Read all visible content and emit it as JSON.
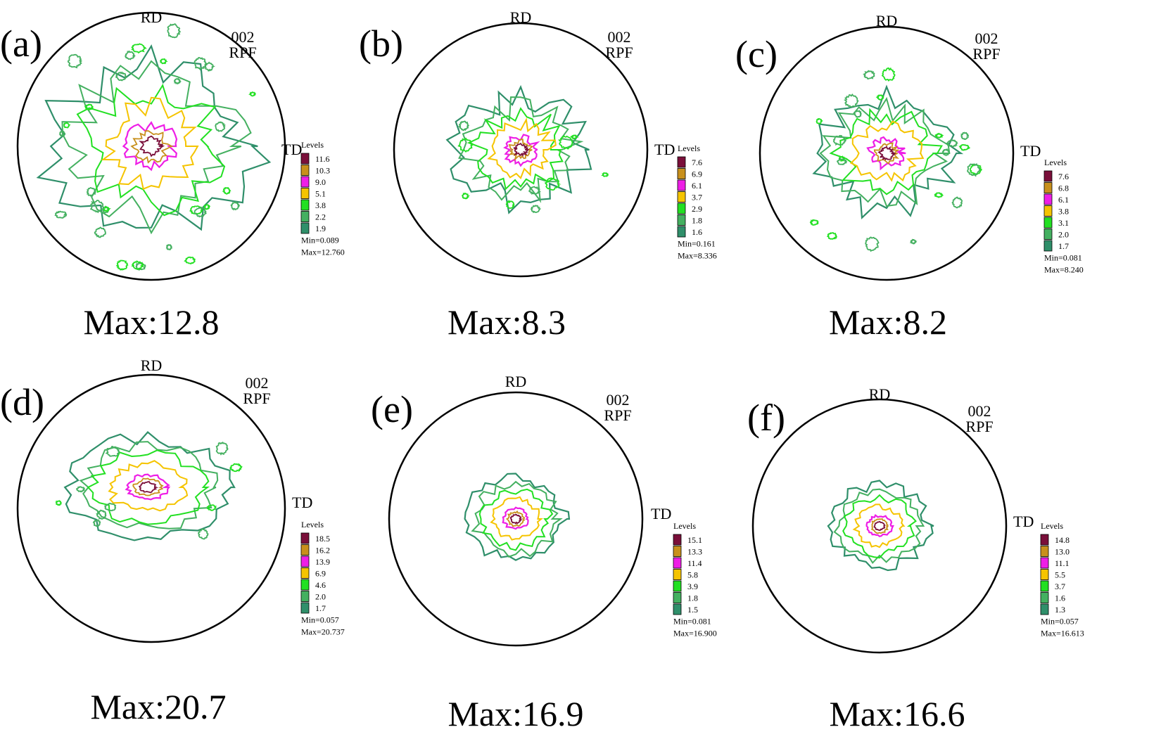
{
  "figure": {
    "type": "pole-figure-grid",
    "colors": {
      "background": "#ffffff",
      "outline": "#000000"
    }
  },
  "chart_data": [
    {
      "type": "pole_figure",
      "panel": "(a)",
      "rd_label": "RD",
      "td_label": "TD",
      "plane": "002",
      "figure_type": "RPF",
      "levels_title": "Levels",
      "levels": [
        "11.6",
        "10.3",
        "9.0",
        "5.1",
        "3.8",
        "2.2",
        "1.9"
      ],
      "level_colors": [
        "#7a0f3a",
        "#c8901c",
        "#ee1ee6",
        "#f5c400",
        "#22e022",
        "#44b060",
        "#2f8f6a"
      ],
      "min_text": "Min=0.089",
      "max_text": "Max=12.760",
      "max_caption": "Max:12.8",
      "spread": "wide"
    },
    {
      "type": "pole_figure",
      "panel": "(b)",
      "rd_label": "RD",
      "td_label": "TD",
      "plane": "002",
      "figure_type": "RPF",
      "levels_title": "Levels",
      "levels": [
        "7.6",
        "6.9",
        "6.1",
        "3.7",
        "2.9",
        "1.8",
        "1.6"
      ],
      "level_colors": [
        "#7a0f3a",
        "#c8901c",
        "#ee1ee6",
        "#f5c400",
        "#22e022",
        "#44b060",
        "#2f8f6a"
      ],
      "min_text": "Min=0.161",
      "max_text": "Max=8.336",
      "max_caption": "Max:8.3",
      "spread": "medium"
    },
    {
      "type": "pole_figure",
      "panel": "(c)",
      "rd_label": "RD",
      "td_label": "TD",
      "plane": "002",
      "figure_type": "RPF",
      "levels_title": "Levels",
      "levels": [
        "7.6",
        "6.8",
        "6.1",
        "3.8",
        "3.1",
        "2.0",
        "1.7"
      ],
      "level_colors": [
        "#7a0f3a",
        "#c8901c",
        "#ee1ee6",
        "#f5c400",
        "#22e022",
        "#44b060",
        "#2f8f6a"
      ],
      "min_text": "Min=0.081",
      "max_text": "Max=8.240",
      "max_caption": "Max:8.2",
      "spread": "medium-scattered"
    },
    {
      "type": "pole_figure",
      "panel": "(d)",
      "rd_label": "RD",
      "td_label": "TD",
      "plane": "002",
      "figure_type": "RPF",
      "levels_title": "Levels",
      "levels": [
        "18.5",
        "16.2",
        "13.9",
        "6.9",
        "4.6",
        "2.0",
        "1.7"
      ],
      "level_colors": [
        "#7a0f3a",
        "#c8901c",
        "#ee1ee6",
        "#f5c400",
        "#22e022",
        "#44b060",
        "#2f8f6a"
      ],
      "min_text": "Min=0.057",
      "max_text": "Max=20.737",
      "max_caption": "Max:20.7",
      "spread": "compact-elongated"
    },
    {
      "type": "pole_figure",
      "panel": "(e)",
      "rd_label": "RD",
      "td_label": "TD",
      "plane": "002",
      "figure_type": "RPF",
      "levels_title": "Levels",
      "levels": [
        "15.1",
        "13.3",
        "11.4",
        "5.8",
        "3.9",
        "1.8",
        "1.5"
      ],
      "level_colors": [
        "#7a0f3a",
        "#c8901c",
        "#ee1ee6",
        "#f5c400",
        "#22e022",
        "#44b060",
        "#2f8f6a"
      ],
      "min_text": "Min=0.081",
      "max_text": "Max=16.900",
      "max_caption": "Max:16.9",
      "spread": "compact"
    },
    {
      "type": "pole_figure",
      "panel": "(f)",
      "rd_label": "RD",
      "td_label": "TD",
      "plane": "002",
      "figure_type": "RPF",
      "levels_title": "Levels",
      "levels": [
        "14.8",
        "13.0",
        "11.1",
        "5.5",
        "3.7",
        "1.6",
        "1.3"
      ],
      "level_colors": [
        "#7a0f3a",
        "#c8901c",
        "#ee1ee6",
        "#f5c400",
        "#22e022",
        "#44b060",
        "#2f8f6a"
      ],
      "min_text": "Min=0.057",
      "max_text": "Max=16.613",
      "max_caption": "Max:16.6",
      "spread": "compact"
    }
  ]
}
